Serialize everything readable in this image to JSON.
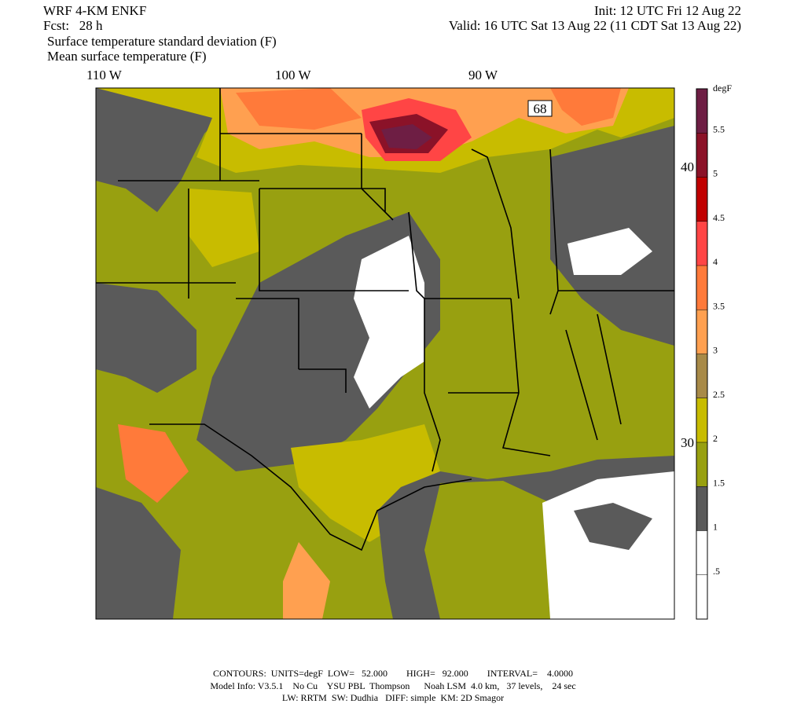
{
  "header": {
    "model": "WRF 4-KM ENKF",
    "forecast": "Fcst:   28 h",
    "init": "Init: 12 UTC Fri 12 Aug 22",
    "valid": "Valid: 16 UTC Sat 13 Aug 22 (11 CDT Sat 13 Aug 22)",
    "field_1": "Surface temperature standard deviation (F)",
    "field_2": "Mean surface temperature (F)"
  },
  "axes": {
    "longitudes": [
      "110 W",
      "100 W",
      "90 W"
    ],
    "latitudes": [
      "40 N",
      "30 N"
    ]
  },
  "map": {
    "contour_label": "68"
  },
  "colorbar": {
    "unit": "degF",
    "range": [
      0,
      6
    ],
    "ticks": [
      {
        "value": 0.5,
        "label": ".5"
      },
      1,
      1.5,
      2,
      2.5,
      3,
      3.5,
      4,
      4.5,
      5,
      5.5
    ],
    "colors": [
      "#ffffff",
      "#ffffff",
      "#5a5a5a",
      "#98a010",
      "#c8bc00",
      "#a88a48",
      "#ffa050",
      "#ff7a3a",
      "#ff4545",
      "#c00000",
      "#8b1228",
      "#6e1e44"
    ]
  },
  "footer": [
    "CONTOURS:  UNITS=degF  LOW=   52.000        HIGH=   92.000        INTERVAL=    4.0000",
    "Model Info: V3.5.1    No Cu    YSU PBL  Thompson      Noah LSM  4.0 km,   37 levels,    24 sec",
    "LW: RRTM  SW: Dudhia   DIFF: simple  KM: 2D Smagor"
  ]
}
